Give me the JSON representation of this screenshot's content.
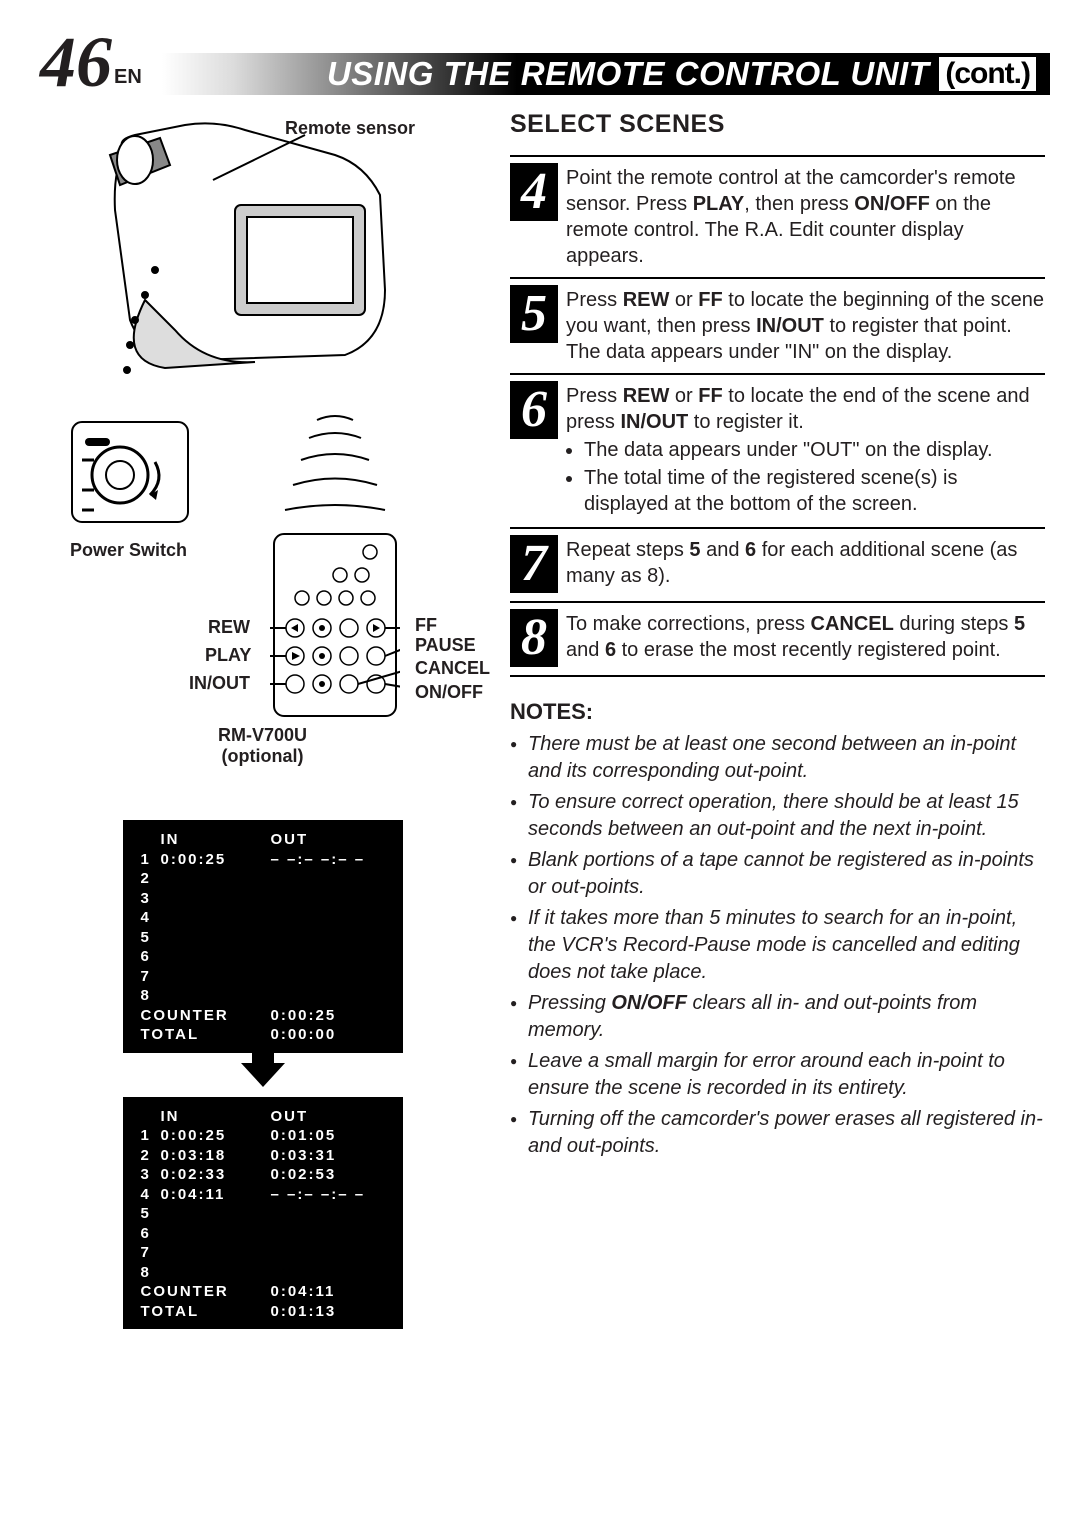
{
  "header": {
    "page_number": "46",
    "lang_suffix": "EN",
    "title": "USING THE REMOTE CONTROL UNIT",
    "cont": "(cont.)"
  },
  "diagram": {
    "remote_sensor_label": "Remote sensor",
    "power_switch_label": "Power Switch",
    "remote_model": "RM-V700U",
    "remote_optional": "(optional)",
    "button_labels": {
      "rew": "REW",
      "play": "PLAY",
      "in_out": "IN/OUT",
      "ff": "FF",
      "pause": "PAUSE",
      "cancel": "CANCEL",
      "on_off": "ON/OFF"
    }
  },
  "display1": {
    "headers": [
      "",
      "IN",
      "OUT"
    ],
    "rows": [
      [
        "1",
        "0:00:25",
        "– –:– –:– –"
      ],
      [
        "2",
        "",
        ""
      ],
      [
        "3",
        "",
        ""
      ],
      [
        "4",
        "",
        ""
      ],
      [
        "5",
        "",
        ""
      ],
      [
        "6",
        "",
        ""
      ],
      [
        "7",
        "",
        ""
      ],
      [
        "8",
        "",
        ""
      ]
    ],
    "counter_label": "COUNTER",
    "counter_value": "0:00:25",
    "total_label": "TOTAL",
    "total_value": "0:00:00"
  },
  "display2": {
    "headers": [
      "",
      "IN",
      "OUT"
    ],
    "rows": [
      [
        "1",
        "0:00:25",
        "0:01:05"
      ],
      [
        "2",
        "0:03:18",
        "0:03:31"
      ],
      [
        "3",
        "0:02:33",
        "0:02:53"
      ],
      [
        "4",
        "0:04:11",
        "– –:– –:– –"
      ],
      [
        "5",
        "",
        ""
      ],
      [
        "6",
        "",
        ""
      ],
      [
        "7",
        "",
        ""
      ],
      [
        "8",
        "",
        ""
      ]
    ],
    "counter_label": "COUNTER",
    "counter_value": "0:04:11",
    "total_label": "TOTAL",
    "total_value": "0:01:13"
  },
  "select_scenes": {
    "title": "SELECT SCENES",
    "steps": [
      {
        "num": "4",
        "html": "Point the remote control at the camcorder's remote sensor. Press <span class='b'>PLAY</span>, then press <span class='b'>ON/OFF</span> on the remote control. The R.A. Edit counter display appears."
      },
      {
        "num": "5",
        "html": "Press <span class='b'>REW</span> or <span class='b'>FF</span> to locate the beginning of the scene you want, then press <span class='b'>IN/OUT</span> to register that point. The data appears under \"IN\" on the display."
      },
      {
        "num": "6",
        "html": "Press <span class='b'>REW</span> or <span class='b'>FF</span> to locate the end of the scene and press <span class='b'>IN/OUT</span> to register it.<ul><li>The data appears under \"OUT\" on the display.</li><li>The total time of the registered scene(s) is displayed at the bottom of the screen.</li></ul>"
      },
      {
        "num": "7",
        "html": "Repeat steps <span class='b'>5</span> and <span class='b'>6</span> for each additional scene (as many as 8)."
      },
      {
        "num": "8",
        "html": "To make corrections, press <span class='b'>CANCEL</span> during steps <span class='b'>5</span> and <span class='b'>6</span> to erase the most recently registered point."
      }
    ]
  },
  "notes": {
    "title": "NOTES:",
    "items": [
      "There must be at least one second between an in-point and its corresponding out-point.",
      "To ensure correct operation, there should be at least 15 seconds between an out-point and the next in-point.",
      "Blank portions of a tape cannot be registered as in-points or out-points.",
      "If it takes more than 5 minutes to search for an in-point, the VCR's Record-Pause mode is cancelled and editing does not take place.",
      "Pressing <span class='b'>ON/OFF</span> clears all in- and out-points from memory.",
      "Leave a small margin for error around each in-point to ensure the scene is recorded in its entirety.",
      "Turning off the camcorder's power erases all registered in- and out-points."
    ]
  }
}
